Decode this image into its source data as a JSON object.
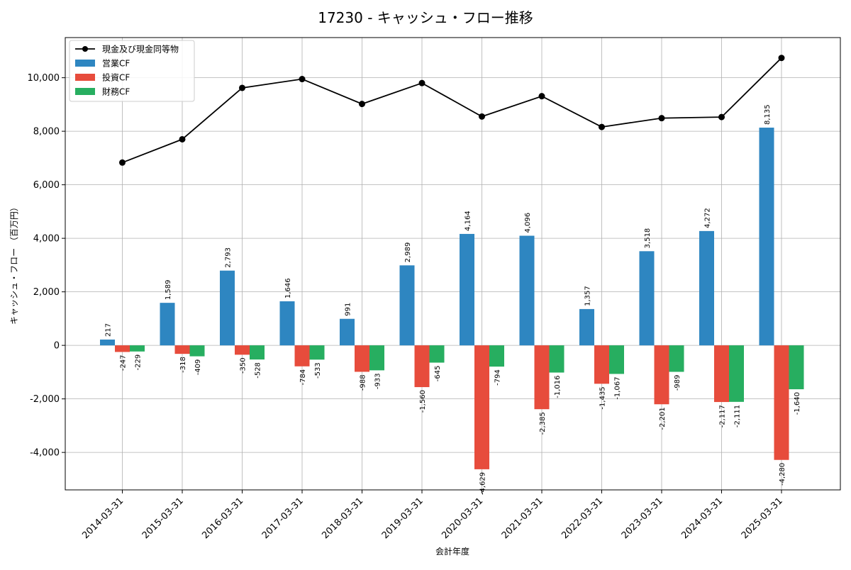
{
  "chart_data": {
    "type": "bar",
    "title": "17230 - キャッシュ・フロー推移",
    "xlabel": "会計年度",
    "ylabel": "キャッシュ・フロー （百万円）",
    "ylim": [
      -5400,
      11500
    ],
    "yticks": [
      -4000,
      -2000,
      0,
      2000,
      4000,
      6000,
      8000,
      10000
    ],
    "ytick_labels": [
      "-4,000",
      "-2,000",
      "0",
      "2,000",
      "4,000",
      "6,000",
      "8,000",
      "10,000"
    ],
    "grid": true,
    "legend_position": "top-left",
    "categories": [
      "2014-03-31",
      "2015-03-31",
      "2016-03-31",
      "2017-03-31",
      "2018-03-31",
      "2019-03-31",
      "2020-03-31",
      "2021-03-31",
      "2022-03-31",
      "2023-03-31",
      "2024-03-31",
      "2025-03-31"
    ],
    "series": [
      {
        "name": "営業CF",
        "kind": "bar",
        "color": "#2e86c1",
        "values": [
          217,
          1589,
          2793,
          1646,
          991,
          2989,
          4164,
          4096,
          1357,
          3518,
          4272,
          8135
        ],
        "labels": [
          "217",
          "1,589",
          "2,793",
          "1,646",
          "991",
          "2,989",
          "4,164",
          "4,096",
          "1,357",
          "3,518",
          "4,272",
          "8,135"
        ]
      },
      {
        "name": "投資CF",
        "kind": "bar",
        "color": "#e74c3c",
        "values": [
          -247,
          -318,
          -350,
          -784,
          -988,
          -1560,
          -4629,
          -2385,
          -1435,
          -2201,
          -2117,
          -4280
        ],
        "labels": [
          "-247",
          "-318",
          "-350",
          "-784",
          "-988",
          "-1,560",
          "-4,629",
          "-2,385",
          "-1,435",
          "-2,201",
          "-2,117",
          "-4,280"
        ]
      },
      {
        "name": "財務CF",
        "kind": "bar",
        "color": "#27ae60",
        "values": [
          -229,
          -409,
          -528,
          -533,
          -933,
          -645,
          -794,
          -1016,
          -1067,
          -989,
          -2111,
          -1640
        ],
        "labels": [
          "-229",
          "-409",
          "-528",
          "-533",
          "-933",
          "-645",
          "-794",
          "-1,016",
          "-1,067",
          "-989",
          "-2,111",
          "-1,640"
        ]
      },
      {
        "name": "現金及び現金同等物",
        "kind": "line",
        "color": "#000000",
        "values": [
          6830,
          7700,
          9620,
          9950,
          9020,
          9800,
          8550,
          9310,
          8160,
          8490,
          8530,
          10740
        ]
      }
    ]
  }
}
